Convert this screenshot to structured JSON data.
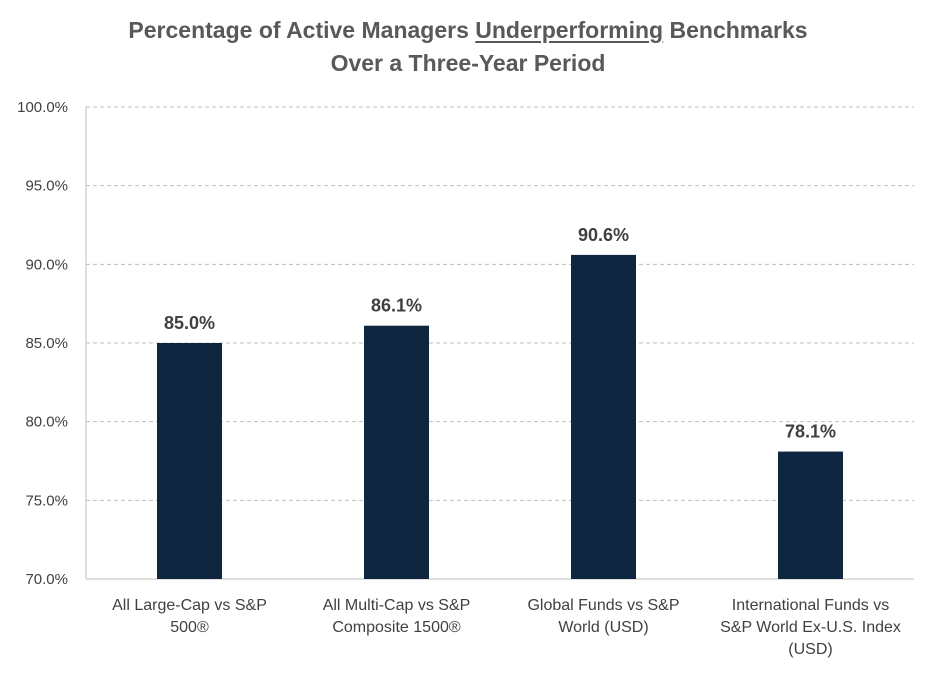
{
  "chart_data": {
    "type": "bar",
    "title_part1": "Percentage of Active Managers ",
    "title_emph": "Underperforming",
    "title_part2": " Benchmarks",
    "title_line2": "Over a Three-Year Period",
    "categories": [
      [
        "All Large-Cap vs S&P",
        "500®"
      ],
      [
        "All Multi-Cap vs S&P",
        "Composite 1500®"
      ],
      [
        "Global Funds vs S&P",
        "World (USD)"
      ],
      [
        "International Funds vs",
        "S&P World Ex-U.S. Index",
        "(USD)"
      ]
    ],
    "values": [
      85.0,
      86.1,
      90.6,
      78.1
    ],
    "data_labels": [
      "85.0%",
      "86.1%",
      "90.6%",
      "78.1%"
    ],
    "ylim": [
      70,
      100
    ],
    "yticks": [
      70,
      75,
      80,
      85,
      90,
      95,
      100
    ],
    "ytick_labels": [
      "70.0%",
      "75.0%",
      "80.0%",
      "85.0%",
      "90.0%",
      "95.0%",
      "100.0%"
    ],
    "bar_color": "#0f2640",
    "grid": true
  }
}
